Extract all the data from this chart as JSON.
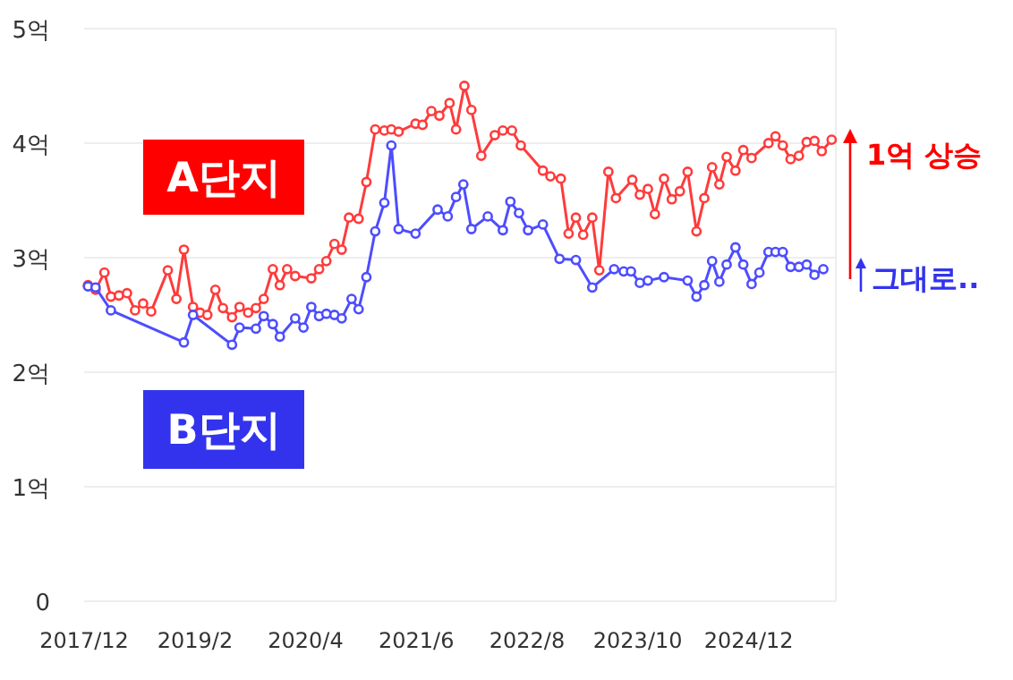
{
  "chart_data": {
    "type": "line",
    "marker": "circle",
    "grid": "y",
    "xlim": [
      "2017-12",
      "2025-11"
    ],
    "xticks": [
      {
        "value": "2017-12",
        "label": "2017/12"
      },
      {
        "value": "2019-02",
        "label": "2019/2"
      },
      {
        "value": "2020-04",
        "label": "2020/4"
      },
      {
        "value": "2021-06",
        "label": "2021/6"
      },
      {
        "value": "2022-08",
        "label": "2022/8"
      },
      {
        "value": "2023-10",
        "label": "2023/10"
      },
      {
        "value": "2024-12",
        "label": "2024/12"
      }
    ],
    "ylim": [
      0,
      5
    ],
    "yticks": [
      0,
      {
        "value": 1,
        "label": "1억"
      },
      {
        "value": 2,
        "label": "2억"
      },
      {
        "value": 3,
        "label": "3억"
      },
      {
        "value": 4,
        "label": "4억"
      },
      {
        "value": 5,
        "label": "5억"
      }
    ],
    "series": [
      {
        "name": "A단지",
        "color": "#ff3b3b",
        "x": [
          "2017-12-16",
          "2018-01-14",
          "2018-02-17",
          "2018-03-14",
          "2018-04-14",
          "2018-05-15",
          "2018-06-15",
          "2018-07-16",
          "2018-08-16",
          "2018-10-19",
          "2018-11-21",
          "2018-12-20",
          "2019-01-24",
          "2019-02-20",
          "2019-03-20",
          "2019-04-20",
          "2019-05-19",
          "2019-06-23",
          "2019-07-22",
          "2019-08-24",
          "2019-09-23",
          "2019-10-23",
          "2019-11-27",
          "2019-12-24",
          "2020-01-21",
          "2020-02-21",
          "2020-04-23",
          "2020-05-23",
          "2020-06-20",
          "2020-07-21",
          "2020-08-18",
          "2020-09-15",
          "2020-10-22",
          "2020-11-21",
          "2020-12-25",
          "2021-01-29",
          "2021-02-25",
          "2021-03-25",
          "2021-05-29",
          "2021-06-25",
          "2021-07-29",
          "2021-08-29",
          "2021-10-07",
          "2021-11-01",
          "2021-12-03",
          "2021-12-30",
          "2022-02-06",
          "2022-03-30",
          "2022-04-30",
          "2022-06-04",
          "2022-07-08",
          "2022-10-01",
          "2022-10-30",
          "2022-12-09",
          "2023-01-08",
          "2023-02-05",
          "2023-03-05",
          "2023-04-09",
          "2023-05-06",
          "2023-06-10",
          "2023-07-09",
          "2023-09-10",
          "2023-10-09",
          "2023-11-09",
          "2023-12-06",
          "2024-01-10",
          "2024-02-09",
          "2024-03-11",
          "2024-04-10",
          "2024-05-14",
          "2024-06-13",
          "2024-07-13",
          "2024-08-10",
          "2024-09-07",
          "2024-10-11",
          "2024-11-10",
          "2024-12-12",
          "2025-02-15",
          "2025-03-14",
          "2025-04-11",
          "2025-05-11",
          "2025-06-12",
          "2025-07-12",
          "2025-08-11",
          "2025-09-08",
          "2025-10-16"
        ],
        "values": [
          2.76,
          2.72,
          2.87,
          2.66,
          2.67,
          2.69,
          2.54,
          2.6,
          2.53,
          2.89,
          2.64,
          3.07,
          2.57,
          2.52,
          2.5,
          2.72,
          2.56,
          2.48,
          2.57,
          2.52,
          2.56,
          2.64,
          2.9,
          2.76,
          2.9,
          2.84,
          2.82,
          2.9,
          2.97,
          3.12,
          3.07,
          3.35,
          3.34,
          3.66,
          4.12,
          4.11,
          4.12,
          4.1,
          4.17,
          4.16,
          4.28,
          4.24,
          4.35,
          4.12,
          4.5,
          4.29,
          3.89,
          4.07,
          4.11,
          4.11,
          3.98,
          3.76,
          3.71,
          3.69,
          3.21,
          3.35,
          3.2,
          3.35,
          2.89,
          3.75,
          3.52,
          3.68,
          3.55,
          3.6,
          3.38,
          3.69,
          3.51,
          3.58,
          3.75,
          3.23,
          3.52,
          3.79,
          3.64,
          3.88,
          3.76,
          3.94,
          3.87,
          4.0,
          4.06,
          3.98,
          3.86,
          3.89,
          4.01,
          4.02,
          3.93,
          4.03
        ]
      },
      {
        "name": "B단지",
        "color": "#4d4dff",
        "x": [
          "2017-12-16",
          "2018-01-14",
          "2018-03-14",
          "2018-12-20",
          "2019-01-24",
          "2019-06-23",
          "2019-07-22",
          "2019-09-23",
          "2019-10-23",
          "2019-11-27",
          "2019-12-24",
          "2020-02-21",
          "2020-03-24",
          "2020-04-23",
          "2020-05-23",
          "2020-06-20",
          "2020-07-21",
          "2020-08-18",
          "2020-09-25",
          "2020-10-22",
          "2020-11-21",
          "2020-12-25",
          "2021-01-29",
          "2021-02-25",
          "2021-03-25",
          "2021-05-29",
          "2021-08-22",
          "2021-09-30",
          "2021-11-01",
          "2021-11-29",
          "2021-12-30",
          "2022-03-03",
          "2022-04-30",
          "2022-05-29",
          "2022-07-01",
          "2022-08-05",
          "2022-10-01",
          "2022-12-04",
          "2023-02-05",
          "2023-04-09",
          "2023-07-02",
          "2023-08-08",
          "2023-09-05",
          "2023-10-09",
          "2023-11-09",
          "2024-01-10",
          "2024-04-10",
          "2024-05-14",
          "2024-06-13",
          "2024-07-13",
          "2024-08-10",
          "2024-09-07",
          "2024-10-11",
          "2024-11-10",
          "2024-12-12",
          "2025-01-11",
          "2025-02-15",
          "2025-03-14",
          "2025-04-11",
          "2025-05-11",
          "2025-06-12",
          "2025-07-12",
          "2025-08-11",
          "2025-09-14"
        ],
        "values": [
          2.75,
          2.74,
          2.54,
          2.26,
          2.5,
          2.24,
          2.39,
          2.38,
          2.49,
          2.42,
          2.31,
          2.47,
          2.39,
          2.57,
          2.49,
          2.51,
          2.5,
          2.47,
          2.64,
          2.55,
          2.83,
          3.23,
          3.48,
          3.98,
          3.25,
          3.21,
          3.42,
          3.36,
          3.53,
          3.64,
          3.25,
          3.36,
          3.24,
          3.49,
          3.39,
          3.24,
          3.29,
          2.99,
          2.98,
          2.74,
          2.9,
          2.88,
          2.88,
          2.78,
          2.8,
          2.83,
          2.8,
          2.66,
          2.76,
          2.97,
          2.79,
          2.94,
          3.09,
          2.94,
          2.77,
          2.87,
          3.05,
          3.05,
          3.05,
          2.92,
          2.92,
          2.94,
          2.85,
          2.9
        ]
      }
    ],
    "annotations": [
      "1억 상승",
      "그대로.."
    ]
  }
}
